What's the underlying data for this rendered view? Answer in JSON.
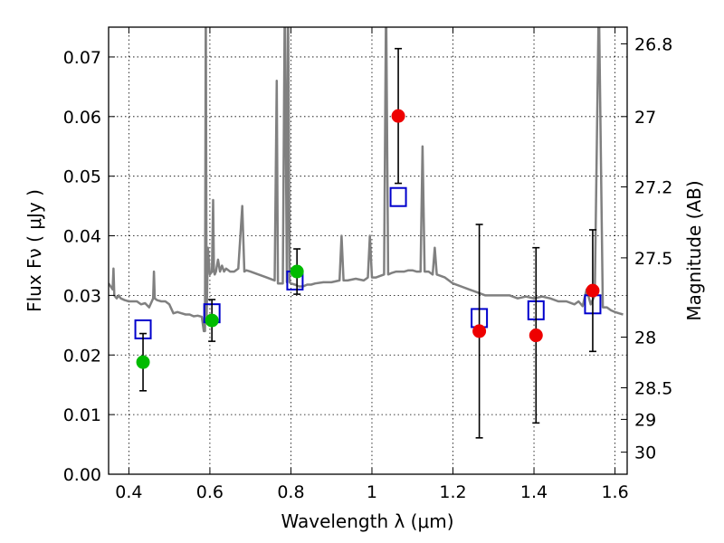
{
  "chart_data": {
    "type": "scatter",
    "title": "",
    "xlabel": "Wavelength  λ (μm)",
    "ylabel": "Flux  Fν  ( μJy )",
    "ylabel_right": "Magnitude (AB)",
    "xlim": [
      0.35,
      1.63
    ],
    "ylim": [
      0.0,
      0.075
    ],
    "grid": true,
    "x_ticks": [
      0.4,
      0.6,
      0.8,
      1.0,
      1.2,
      1.4,
      1.6
    ],
    "x_tick_labels": [
      "0.4",
      "0.6",
      "0.8",
      "1",
      "1.2",
      "1.4",
      "1.6"
    ],
    "y_ticks": [
      0.0,
      0.01,
      0.02,
      0.03,
      0.04,
      0.05,
      0.06,
      0.07
    ],
    "y_tick_labels": [
      "0.00",
      "0.01",
      "0.02",
      "0.03",
      "0.04",
      "0.05",
      "0.06",
      "0.07"
    ],
    "right_ticks": [
      {
        "flux": 0.0722,
        "label": "26.8"
      },
      {
        "flux": 0.06,
        "label": "27"
      },
      {
        "flux": 0.0482,
        "label": "27.2"
      },
      {
        "flux": 0.0363,
        "label": "27.5"
      },
      {
        "flux": 0.023,
        "label": "28"
      },
      {
        "flux": 0.0145,
        "label": "28.5"
      },
      {
        "flux": 0.0092,
        "label": "29"
      },
      {
        "flux": 0.0037,
        "label": "30"
      }
    ],
    "series": [
      {
        "marker": "line",
        "color": "#808080",
        "x": [
          0.35,
          0.36,
          0.362,
          0.364,
          0.37,
          0.375,
          0.38,
          0.39,
          0.4,
          0.41,
          0.42,
          0.43,
          0.44,
          0.45,
          0.46,
          0.462,
          0.464,
          0.47,
          0.48,
          0.49,
          0.5,
          0.51,
          0.52,
          0.53,
          0.54,
          0.55,
          0.56,
          0.57,
          0.58,
          0.585,
          0.588,
          0.59,
          0.592,
          0.595,
          0.6,
          0.605,
          0.608,
          0.61,
          0.612,
          0.615,
          0.62,
          0.625,
          0.63,
          0.635,
          0.64,
          0.65,
          0.66,
          0.67,
          0.68,
          0.685,
          0.69,
          0.7,
          0.72,
          0.74,
          0.76,
          0.765,
          0.768,
          0.772,
          0.78,
          0.785,
          0.79,
          0.793,
          0.797,
          0.8,
          0.81,
          0.82,
          0.83,
          0.84,
          0.85,
          0.86,
          0.88,
          0.9,
          0.92,
          0.925,
          0.93,
          0.94,
          0.96,
          0.98,
          0.99,
          0.995,
          1.0,
          1.01,
          1.03,
          1.035,
          1.04,
          1.05,
          1.06,
          1.07,
          1.08,
          1.09,
          1.1,
          1.11,
          1.12,
          1.125,
          1.13,
          1.14,
          1.15,
          1.155,
          1.16,
          1.18,
          1.2,
          1.22,
          1.24,
          1.26,
          1.28,
          1.3,
          1.32,
          1.34,
          1.36,
          1.38,
          1.4,
          1.42,
          1.44,
          1.46,
          1.48,
          1.5,
          1.51,
          1.52,
          1.53,
          1.54,
          1.55,
          1.56,
          1.57,
          1.58,
          1.59,
          1.6,
          1.61,
          1.62
        ],
        "y": [
          0.032,
          0.031,
          0.0345,
          0.03,
          0.0295,
          0.03,
          0.0295,
          0.0292,
          0.029,
          0.029,
          0.029,
          0.0285,
          0.0287,
          0.028,
          0.0295,
          0.034,
          0.0295,
          0.0292,
          0.029,
          0.029,
          0.0285,
          0.027,
          0.0272,
          0.027,
          0.0268,
          0.0268,
          0.0265,
          0.0266,
          0.0264,
          0.024,
          0.024,
          0.08,
          0.026,
          0.038,
          0.0335,
          0.034,
          0.046,
          0.034,
          0.0335,
          0.034,
          0.036,
          0.034,
          0.035,
          0.034,
          0.0345,
          0.034,
          0.034,
          0.0345,
          0.045,
          0.034,
          0.0342,
          0.034,
          0.0335,
          0.033,
          0.0325,
          0.066,
          0.032,
          0.032,
          0.032,
          0.08,
          0.0322,
          0.08,
          0.0322,
          0.032,
          0.0318,
          0.0315,
          0.0315,
          0.0318,
          0.0318,
          0.032,
          0.0322,
          0.0322,
          0.0325,
          0.04,
          0.0325,
          0.0325,
          0.0328,
          0.0325,
          0.033,
          0.04,
          0.033,
          0.033,
          0.0335,
          0.08,
          0.0335,
          0.0338,
          0.034,
          0.034,
          0.034,
          0.0342,
          0.0342,
          0.034,
          0.034,
          0.055,
          0.034,
          0.034,
          0.0335,
          0.038,
          0.0335,
          0.033,
          0.032,
          0.0315,
          0.031,
          0.0305,
          0.03,
          0.03,
          0.03,
          0.03,
          0.0295,
          0.0298,
          0.0295,
          0.0298,
          0.0295,
          0.029,
          0.029,
          0.0285,
          0.029,
          0.0282,
          0.031,
          0.0285,
          0.03,
          0.08,
          0.028,
          0.028,
          0.0275,
          0.0272,
          0.027,
          0.0268
        ]
      },
      {
        "marker": "square",
        "color": "#0000cc",
        "x": [
          0.435,
          0.605,
          0.81,
          1.065,
          1.265,
          1.405,
          1.545
        ],
        "y": [
          0.0243,
          0.027,
          0.0325,
          0.0465,
          0.0262,
          0.0275,
          0.0285
        ]
      },
      {
        "marker": "circle",
        "color": "#00bb00",
        "x": [
          0.435,
          0.605,
          0.815
        ],
        "y": [
          0.0188,
          0.0258,
          0.034
        ],
        "err": [
          0.0048,
          0.0035,
          0.0038
        ]
      },
      {
        "marker": "circle",
        "color": "#ee0000",
        "x": [
          1.065,
          1.265,
          1.405,
          1.545
        ],
        "y": [
          0.0601,
          0.024,
          0.0233,
          0.0308
        ],
        "err": [
          0.0113,
          0.0179,
          0.0147,
          0.0102
        ]
      }
    ]
  }
}
